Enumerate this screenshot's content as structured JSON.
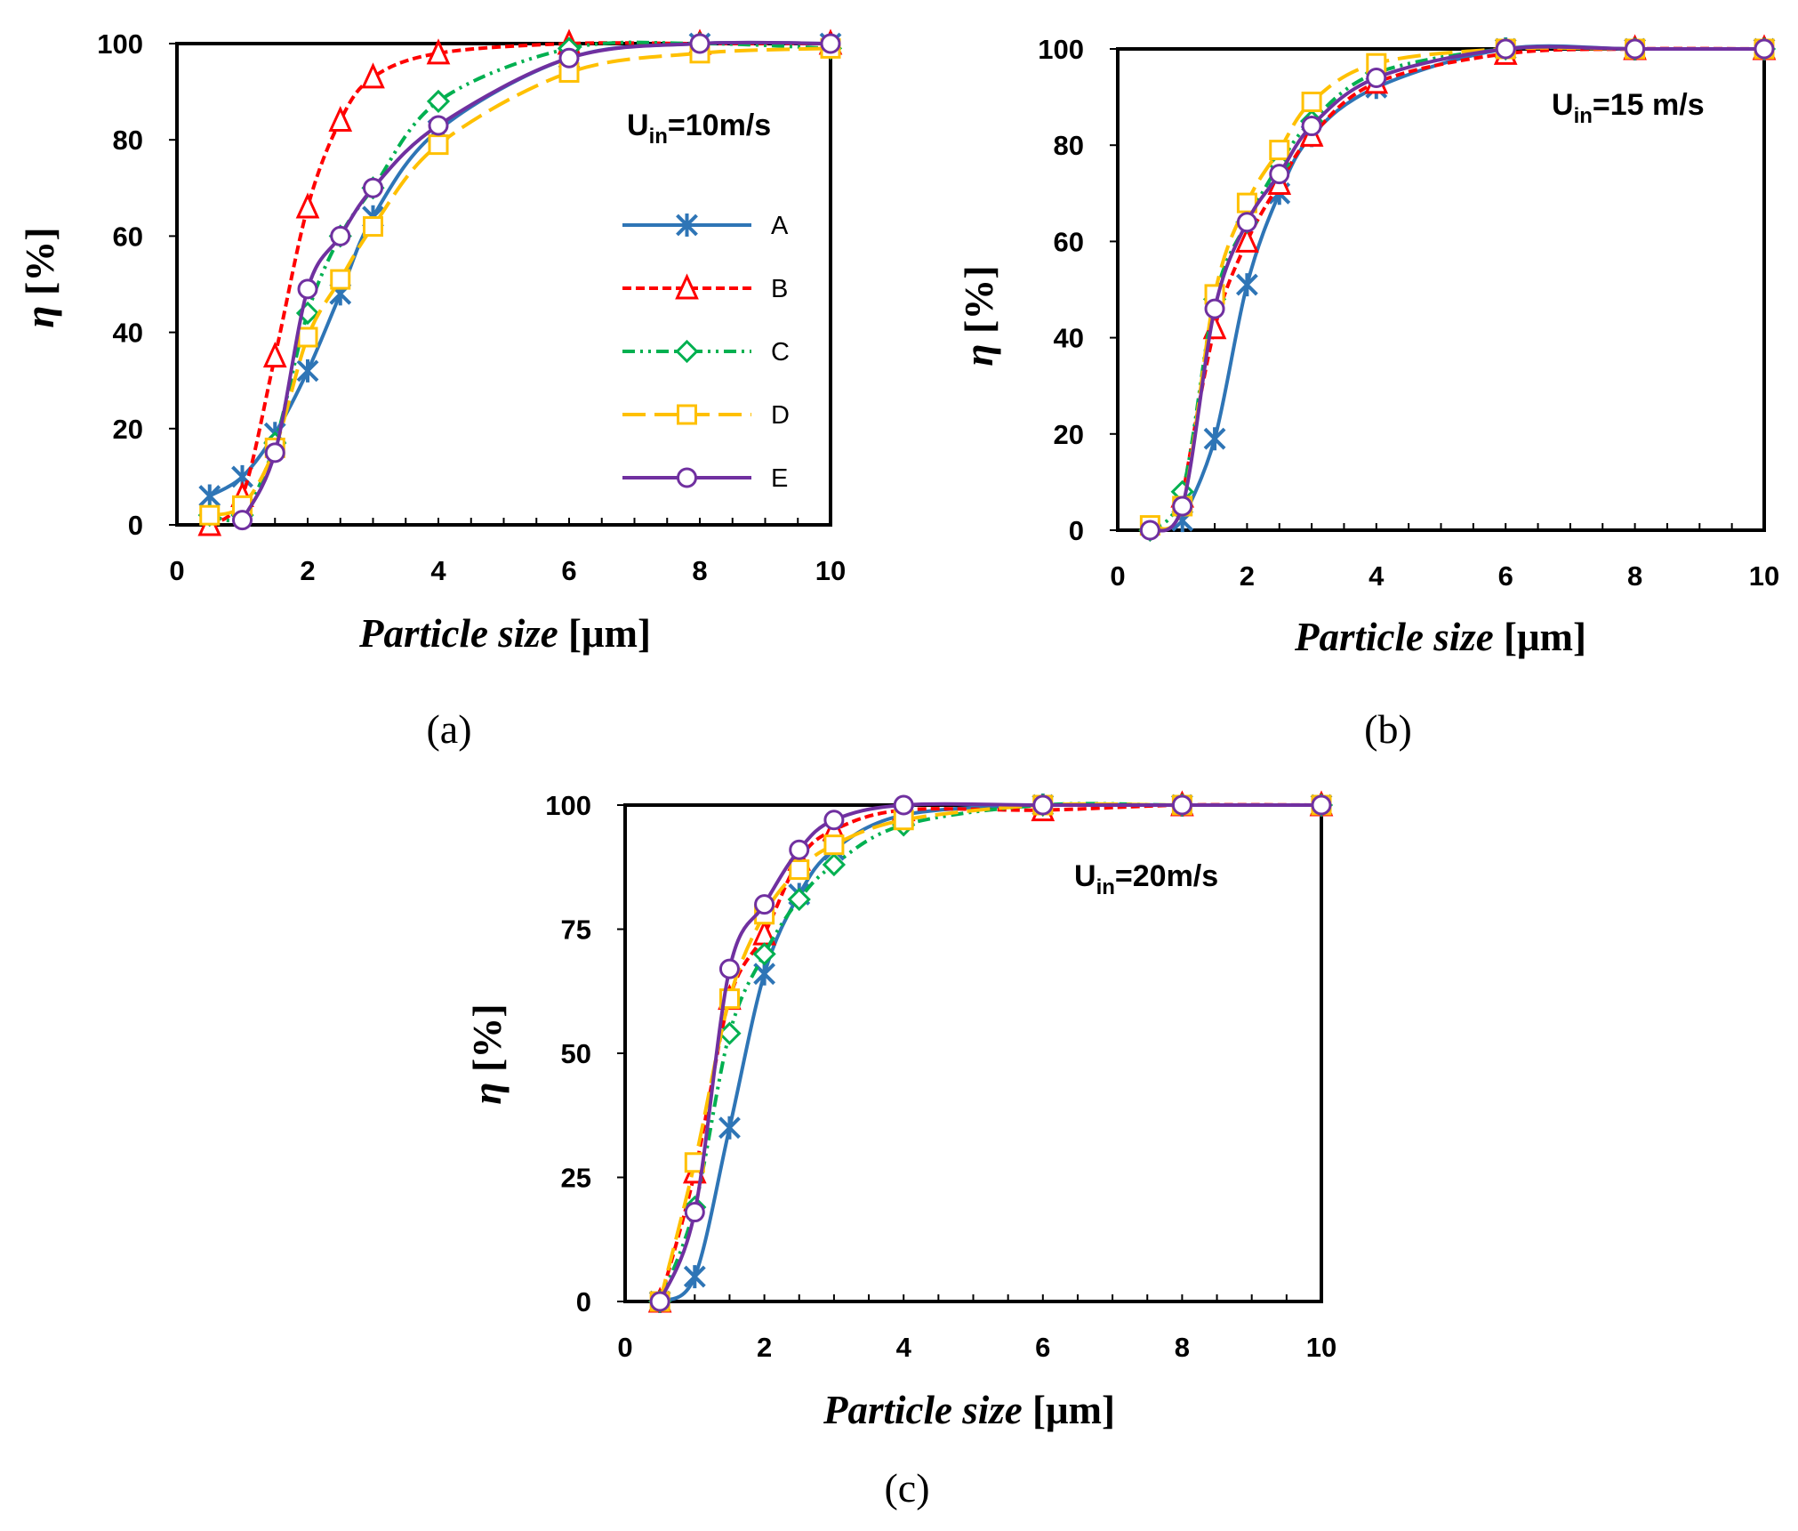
{
  "chart_data": [
    {
      "type": "line",
      "panel_label": "(a)",
      "condition_main": "U",
      "condition_sub": "in",
      "condition_rest": "=10m/s",
      "xlabel_name": "Particle size",
      "xlabel_unit": "[μm]",
      "ylabel_symbol": "η",
      "ylabel_unit": "[%]",
      "xlim": [
        0,
        10
      ],
      "ylim": [
        0,
        100
      ],
      "xticks": [
        0,
        2,
        4,
        6,
        8,
        10
      ],
      "yticks": [
        0,
        20,
        40,
        60,
        80,
        100
      ],
      "legend_position": "right-middle",
      "series": [
        {
          "name": "A",
          "x": [
            0.5,
            1,
            1.5,
            2,
            2.5,
            3,
            4,
            6,
            8,
            10
          ],
          "y": [
            6,
            10,
            19,
            32,
            48,
            64,
            82,
            97,
            100,
            100
          ]
        },
        {
          "name": "B",
          "x": [
            0.5,
            1,
            1.5,
            2,
            2.5,
            3,
            4,
            6,
            8,
            10
          ],
          "y": [
            0,
            6,
            35,
            66,
            84,
            93,
            98,
            100,
            100,
            100
          ]
        },
        {
          "name": "C",
          "x": [
            0.5,
            1,
            1.5,
            2,
            2.5,
            3,
            4,
            6,
            8,
            10
          ],
          "y": [
            2,
            2,
            17,
            44,
            60,
            70,
            88,
            99,
            100,
            99
          ]
        },
        {
          "name": "D",
          "x": [
            0.5,
            1,
            1.5,
            2,
            2.5,
            3,
            4,
            6,
            8,
            10
          ],
          "y": [
            2,
            4,
            16,
            39,
            51,
            62,
            79,
            94,
            98,
            99
          ]
        },
        {
          "name": "E",
          "x": [
            1,
            1.5,
            2,
            2.5,
            3,
            4,
            6,
            8,
            10
          ],
          "y": [
            1,
            15,
            49,
            60,
            70,
            83,
            97,
            100,
            100
          ]
        }
      ]
    },
    {
      "type": "line",
      "panel_label": "(b)",
      "condition_main": "U",
      "condition_sub": "in",
      "condition_rest": "=15 m/s",
      "xlabel_name": "Particle size",
      "xlabel_unit": "[μm]",
      "ylabel_symbol": "η",
      "ylabel_unit": "[%]",
      "xlim": [
        0,
        10
      ],
      "ylim": [
        0,
        100
      ],
      "xticks": [
        0,
        2,
        4,
        6,
        8,
        10
      ],
      "yticks": [
        0,
        20,
        40,
        60,
        80,
        100
      ],
      "series": [
        {
          "name": "A",
          "x": [
            1,
            1.5,
            2,
            2.5,
            3,
            4,
            6,
            8,
            10
          ],
          "y": [
            2,
            19,
            51,
            70,
            82,
            92,
            100,
            100,
            100
          ]
        },
        {
          "name": "B",
          "x": [
            1,
            1.5,
            2,
            2.5,
            3,
            4,
            6,
            8,
            10
          ],
          "y": [
            7,
            42,
            60,
            72,
            82,
            93,
            99,
            100,
            100
          ]
        },
        {
          "name": "C",
          "x": [
            0.5,
            1,
            1.5,
            2,
            2.5,
            3,
            4,
            6,
            8,
            10
          ],
          "y": [
            0,
            8,
            48,
            64,
            76,
            85,
            95,
            100,
            100,
            100
          ]
        },
        {
          "name": "D",
          "x": [
            0.5,
            1,
            1.5,
            2,
            2.5,
            3,
            4,
            6,
            8,
            10
          ],
          "y": [
            1,
            5,
            49,
            68,
            79,
            89,
            97,
            100,
            100,
            100
          ]
        },
        {
          "name": "E",
          "x": [
            0.5,
            1,
            1.5,
            2,
            2.5,
            3,
            4,
            6,
            8,
            10
          ],
          "y": [
            0,
            5,
            46,
            64,
            74,
            84,
            94,
            100,
            100,
            100
          ]
        }
      ]
    },
    {
      "type": "line",
      "panel_label": "(c)",
      "condition_main": "U",
      "condition_sub": "in",
      "condition_rest": "=20m/s",
      "xlabel_name": "Particle size",
      "xlabel_unit": "[μm]",
      "ylabel_symbol": "η",
      "ylabel_unit": "[%]",
      "xlim": [
        0,
        10
      ],
      "ylim": [
        0,
        100
      ],
      "xticks": [
        0,
        2,
        4,
        6,
        8,
        10
      ],
      "yticks": [
        0,
        25,
        50,
        75,
        100
      ],
      "series": [
        {
          "name": "A",
          "x": [
            0.5,
            1,
            1.5,
            2,
            2.5,
            3,
            4,
            6,
            8,
            10
          ],
          "y": [
            0,
            5,
            35,
            66,
            82,
            91,
            98,
            100,
            100,
            100
          ]
        },
        {
          "name": "B",
          "x": [
            0.5,
            1,
            1.5,
            2,
            2.5,
            3,
            4,
            6,
            8,
            10
          ],
          "y": [
            0,
            26,
            61,
            74,
            89,
            95,
            99,
            99,
            100,
            100
          ]
        },
        {
          "name": "C",
          "x": [
            0.5,
            1,
            1.5,
            2,
            2.5,
            3,
            4,
            6,
            8,
            10
          ],
          "y": [
            0,
            19,
            54,
            70,
            81,
            88,
            96,
            100,
            100,
            100
          ]
        },
        {
          "name": "D",
          "x": [
            0.5,
            1,
            1.5,
            2,
            2.5,
            3,
            4,
            6,
            8,
            10
          ],
          "y": [
            0,
            28,
            61,
            78,
            87,
            92,
            97,
            100,
            100,
            100
          ]
        },
        {
          "name": "E",
          "x": [
            0.5,
            1,
            1.5,
            2,
            2.5,
            3,
            4,
            6,
            8,
            10
          ],
          "y": [
            0,
            18,
            67,
            80,
            91,
            97,
            100,
            100,
            100,
            100
          ]
        }
      ]
    }
  ],
  "series_styles": {
    "A": {
      "color": "#2E75B6",
      "marker": "asterisk",
      "dash": "none"
    },
    "B": {
      "color": "#FF0000",
      "marker": "triangle",
      "dash": "short-dash"
    },
    "C": {
      "color": "#00B050",
      "marker": "diamond",
      "dash": "dash-dot-dot"
    },
    "D": {
      "color": "#FFC000",
      "marker": "square",
      "dash": "long-dash"
    },
    "E": {
      "color": "#7030A0",
      "marker": "circle",
      "dash": "none"
    }
  }
}
